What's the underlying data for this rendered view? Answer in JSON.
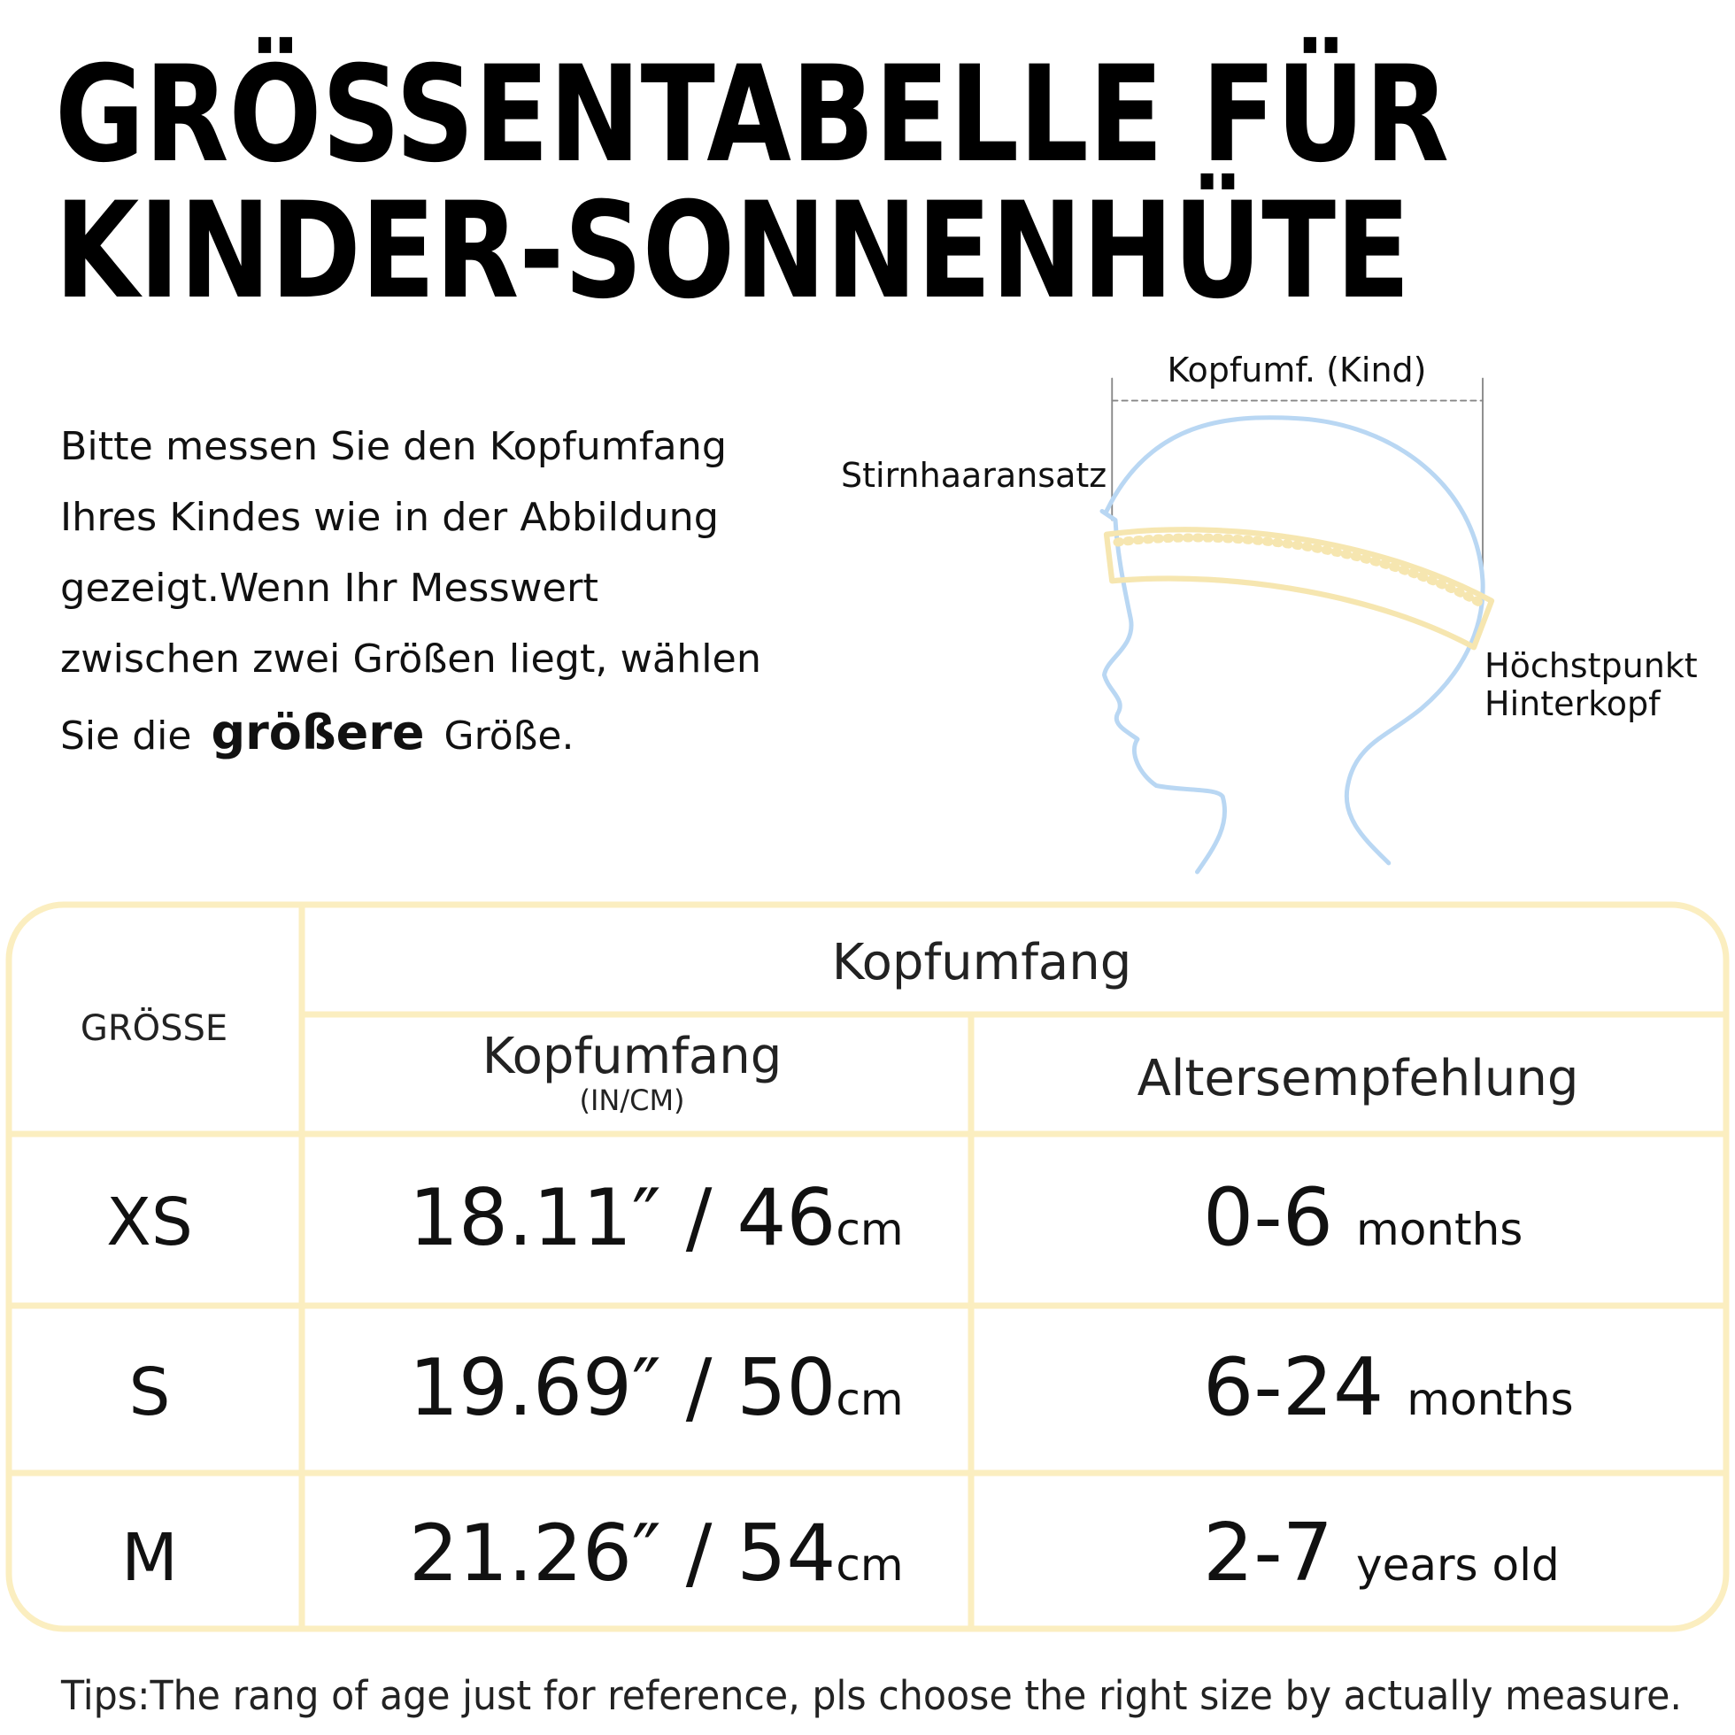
{
  "title": {
    "lines": [
      "GRÖSSENTABELLE FÜR",
      "KINDER-SONNENHÜTE"
    ]
  },
  "instructions": {
    "lines": [
      "Bitte messen Sie den Kopfumfang",
      "Ihres Kindes wie in der Abbildung",
      "gezeigt.Wenn Ihr Messwert",
      "zwischen zwei Größen liegt, wählen"
    ],
    "last_line": {
      "before": "Sie die",
      "bold": "größere",
      "after": "Größe."
    }
  },
  "diagram": {
    "top_label": "Kopfumf. (Kind)",
    "front_label": "Stirnhaaransatz",
    "back_label": [
      "Höchstpunkt",
      "Hinterkopf"
    ]
  },
  "table": {
    "group_header": "Kopfumfang",
    "size_header": "GRÖSSE",
    "circumference_header": "Kopfumfang",
    "circumference_unit_note": "(IN/CM)",
    "age_header": "Altersempfehlung",
    "rows": [
      {
        "size": "XS",
        "circumference": "18.11″ / 46",
        "unit": "cm",
        "age": "0-6",
        "age_unit": "months"
      },
      {
        "size": "S",
        "circumference": "19.69″ / 50",
        "unit": "cm",
        "age": "6-24",
        "age_unit": "months"
      },
      {
        "size": "M",
        "circumference": "21.26″ / 54",
        "unit": "cm",
        "age": "2-7",
        "age_unit": "years old"
      }
    ]
  },
  "tips": "Tips:The rang of age just for reference, pls choose the right size by actually measure."
}
